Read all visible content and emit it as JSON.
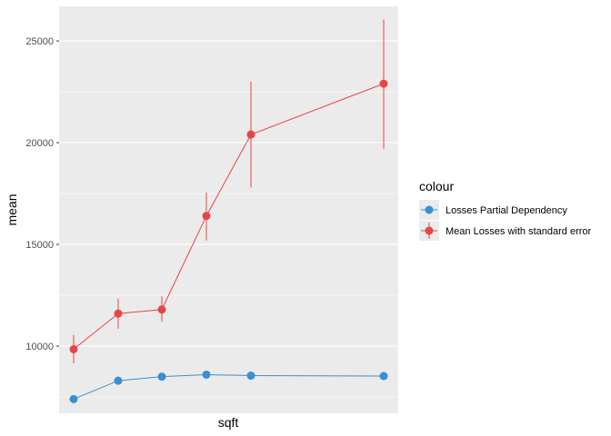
{
  "chart_data": {
    "type": "line",
    "xlabel": "sqft",
    "ylabel": "mean",
    "ylim": [
      6700,
      26700
    ],
    "y_ticks": [
      10000,
      15000,
      20000,
      25000
    ],
    "y_tick_labels": [
      "10000",
      "15000",
      "20000",
      "25000"
    ],
    "x_ticks_shown": false,
    "grid": true,
    "legend": {
      "title": "colour",
      "position": "right"
    },
    "series": [
      {
        "name": "Losses Partial Dependency",
        "color": "#3a8fd0",
        "x": [
          1,
          2,
          3,
          4,
          5,
          6
        ],
        "y": [
          7400,
          8300,
          8500,
          8600,
          8550,
          8530
        ]
      },
      {
        "name": "Mean Losses with standard error",
        "color": "#e84545",
        "x": [
          1,
          2,
          3,
          4,
          5,
          6
        ],
        "y": [
          9850,
          11600,
          11800,
          16400,
          20400,
          22900
        ],
        "ymin": [
          9150,
          10850,
          11200,
          15200,
          17800,
          19700
        ],
        "ymax": [
          10550,
          12350,
          12450,
          17550,
          23000,
          26050
        ]
      }
    ]
  }
}
